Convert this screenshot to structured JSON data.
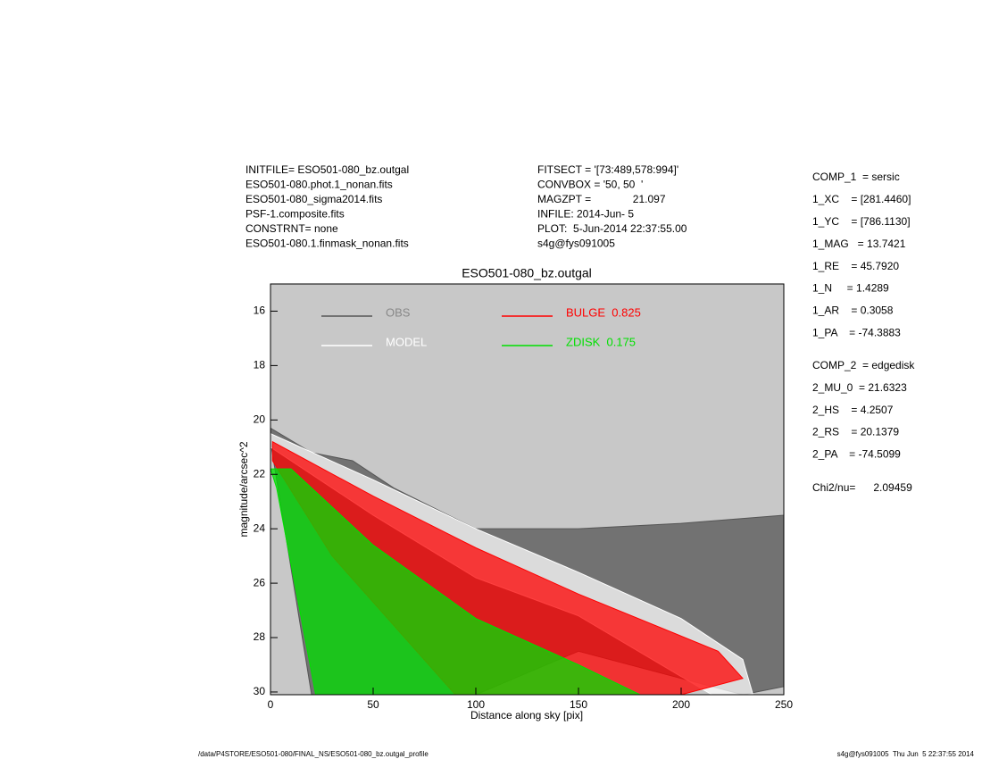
{
  "header": {
    "left": [
      "INITFILE= ESO501-080_bz.outgal",
      "ESO501-080.phot.1_nonan.fits",
      "ESO501-080_sigma2014.fits",
      "PSF-1.composite.fits",
      "CONSTRNT= none",
      "ESO501-080.1.finmask_nonan.fits"
    ],
    "middle": [
      "FITSECT = '[73:489,578:994]'",
      "CONVBOX = '50, 50  '",
      "MAGZPT =              21.097",
      "INFILE: 2014-Jun- 5",
      "PLOT:  5-Jun-2014 22:37:55.00",
      "s4g@fys091005"
    ],
    "params1": [
      "COMP_1  = sersic",
      "1_XC    = [281.4460]",
      "1_YC    = [786.1130]",
      "1_MAG   = 13.7421",
      "1_RE    = 45.7920",
      "1_N     = 1.4289",
      "1_AR    = 0.3058",
      "1_PA    = -74.3883"
    ],
    "params2": [
      "COMP_2  = edgedisk",
      "2_MU_0  = 21.6323",
      "2_HS    = 4.2507",
      "2_RS    = 20.1379",
      "2_PA    = -74.5099"
    ],
    "chi": "Chi2/nu=      2.09459"
  },
  "footer": {
    "left": "/data/P4STORE/ESO501-080/FINAL_NS/ESO501-080_bz.outgal_profile",
    "right": "s4g@fys091005  Thu Jun  5 22:37:55 2014"
  },
  "chart_data": {
    "type": "area",
    "title": "ESO501-080_bz.outgal",
    "x_label": "Distance along sky [pix]",
    "y_label": "magnitude/arcsec^2",
    "xlim": [
      0,
      250
    ],
    "ylim": [
      30.1,
      15.0
    ],
    "xticks": [
      0,
      50,
      100,
      150,
      200,
      250
    ],
    "yticks": [
      16,
      18,
      20,
      22,
      24,
      26,
      28,
      30
    ],
    "background": "#c8c8c8",
    "series": [
      {
        "name": "OBS",
        "color": "#555555",
        "x": [
          0,
          20,
          40,
          60,
          100,
          150,
          200,
          250,
          250,
          230,
          150,
          100,
          20,
          0
        ],
        "values": [
          20.3,
          21.2,
          21.5,
          22.5,
          24.0,
          24.0,
          23.8,
          23.5,
          29.8,
          30.1,
          28.5,
          30.1,
          30.1,
          20.8
        ]
      },
      {
        "name": "MODEL",
        "color": "#ffffff",
        "x": [
          0,
          50,
          100,
          150,
          200,
          230,
          235,
          215,
          150,
          100,
          50,
          0
        ],
        "values": [
          20.5,
          22.2,
          24.0,
          25.6,
          27.3,
          28.8,
          30.1,
          30.1,
          27.2,
          25.8,
          23.5,
          21.0
        ]
      },
      {
        "name": "BULGE  0.825",
        "color": "#ff0000",
        "x": [
          1,
          50,
          100,
          150,
          218,
          230,
          200,
          90,
          30,
          1
        ],
        "values": [
          20.8,
          22.8,
          24.7,
          26.4,
          28.5,
          29.5,
          30.1,
          30.1,
          25.0,
          21.5
        ]
      },
      {
        "name": "ZDISK  0.175",
        "color": "#00e000",
        "x": [
          0,
          10,
          50,
          100,
          150,
          180,
          22,
          3
        ],
        "values": [
          21.8,
          21.8,
          24.6,
          27.3,
          29.0,
          30.1,
          30.1,
          22.5
        ]
      }
    ]
  }
}
